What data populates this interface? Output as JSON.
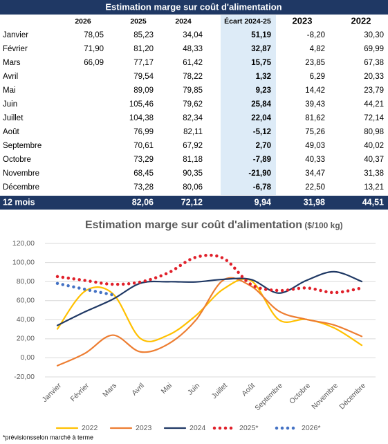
{
  "table": {
    "title": "Estimation marge sur coût d'alimentation",
    "header": [
      null,
      "2026",
      "2025",
      "2024",
      "Écart 2024-25",
      "2023",
      "2022"
    ],
    "rows": [
      [
        "Janvier",
        "78,05",
        "85,23",
        "34,04",
        "51,19",
        "-8,20",
        "30,30"
      ],
      [
        "Février",
        "71,90",
        "81,20",
        "48,33",
        "32,87",
        "4,82",
        "69,99"
      ],
      [
        "Mars",
        "66,09",
        "77,17",
        "61,42",
        "15,75",
        "23,85",
        "67,38"
      ],
      [
        "Avril",
        null,
        "79,54",
        "78,22",
        "1,32",
        "6,29",
        "20,33"
      ],
      [
        "Mai",
        null,
        "89,09",
        "79,85",
        "9,23",
        "14,42",
        "23,79"
      ],
      [
        "Juin",
        null,
        "105,46",
        "79,62",
        "25,84",
        "39,43",
        "44,21"
      ],
      [
        "Juillet",
        null,
        "104,38",
        "82,34",
        "22,04",
        "81,62",
        "72,14"
      ],
      [
        "Août",
        null,
        "76,99",
        "82,11",
        "-5,12",
        "75,26",
        "80,98"
      ],
      [
        "Septembre",
        null,
        "70,61",
        "67,92",
        "2,70",
        "49,03",
        "40,02"
      ],
      [
        "Octobre",
        null,
        "73,29",
        "81,18",
        "-7,89",
        "40,33",
        "40,37"
      ],
      [
        "Novembre",
        null,
        "68,45",
        "90,35",
        "-21,90",
        "34,47",
        "31,38"
      ],
      [
        "Décembre",
        null,
        "73,28",
        "80,06",
        "-6,78",
        "22,50",
        "13,21"
      ]
    ],
    "total": [
      "12 mois",
      null,
      "82,06",
      "72,12",
      "9,94",
      "31,98",
      "44,51"
    ]
  },
  "chart_data": {
    "type": "line",
    "title": "Estimation marge sur coût d'alimentation",
    "subtitle": "($/100 kg)",
    "categories": [
      "Janvier",
      "Février",
      "Mars",
      "Avril",
      "Mai",
      "Juin",
      "Juillet",
      "Août",
      "Septembre",
      "Octobre",
      "Novembre",
      "Décembre"
    ],
    "series": [
      {
        "name": "2022",
        "color": "#ffc000",
        "style": "solid",
        "values": [
          30.3,
          69.99,
          67.38,
          20.33,
          23.79,
          44.21,
          72.14,
          80.98,
          40.02,
          40.37,
          31.38,
          13.21
        ]
      },
      {
        "name": "2023",
        "color": "#ed7d31",
        "style": "solid",
        "values": [
          -8.2,
          4.82,
          23.85,
          6.29,
          14.42,
          39.43,
          81.62,
          75.26,
          49.03,
          40.33,
          34.47,
          22.5
        ]
      },
      {
        "name": "2024",
        "color": "#1f3864",
        "style": "solid",
        "values": [
          34.04,
          48.33,
          61.42,
          78.22,
          79.85,
          79.62,
          82.34,
          82.11,
          67.92,
          81.18,
          90.35,
          80.06
        ]
      },
      {
        "name": "2025*",
        "color": "#e0202a",
        "style": "dotted",
        "values": [
          85.23,
          81.2,
          77.17,
          79.54,
          89.09,
          105.46,
          104.38,
          76.99,
          70.61,
          73.29,
          68.45,
          73.28
        ]
      },
      {
        "name": "2026*",
        "color": "#4472c4",
        "style": "dotted",
        "values": [
          78.05,
          71.9,
          66.09,
          null,
          null,
          null,
          null,
          null,
          null,
          null,
          null,
          null
        ]
      }
    ],
    "ylim": [
      -20,
      120
    ],
    "yticks": [
      {
        "value": -20,
        "label": "-20,00"
      },
      {
        "value": 0,
        "label": "0,00"
      },
      {
        "value": 20,
        "label": "20,00"
      },
      {
        "value": 40,
        "label": "40,00"
      },
      {
        "value": 60,
        "label": "60,00"
      },
      {
        "value": 80,
        "label": "80,00"
      },
      {
        "value": 100,
        "label": "100,00"
      },
      {
        "value": 120,
        "label": "120,00"
      }
    ],
    "grid": true,
    "legend": "bottom",
    "note": "*prévisionsselon marché à terme"
  }
}
